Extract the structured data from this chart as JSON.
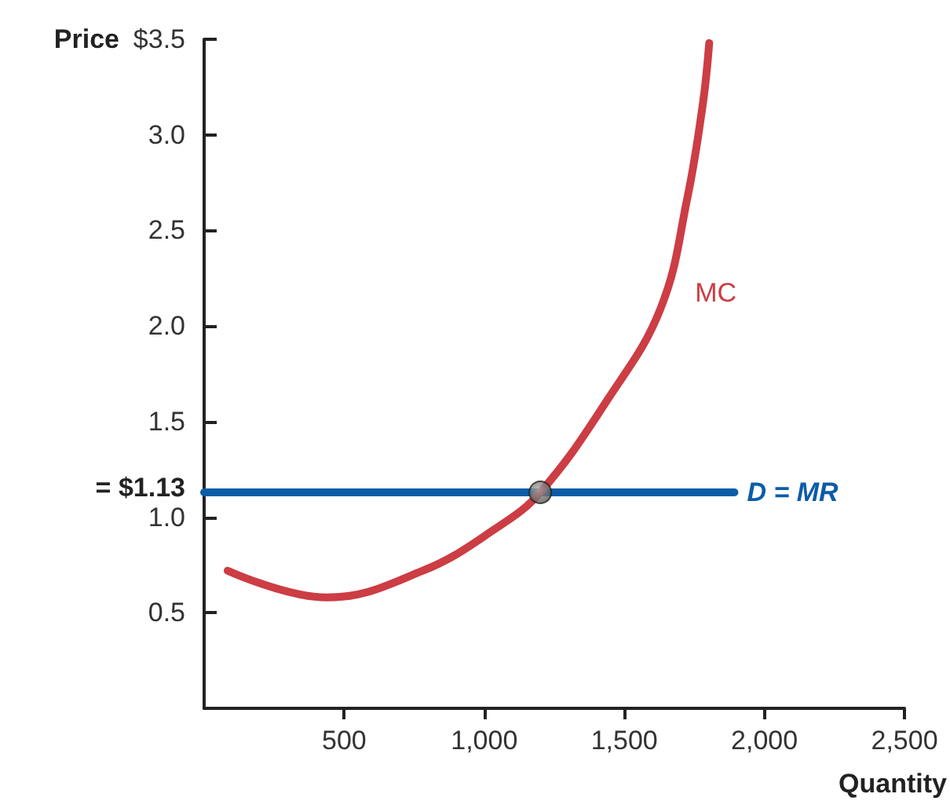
{
  "chart_data": {
    "type": "line",
    "ylabel": "Price",
    "xlabel": "Quantity",
    "xlim": [
      0,
      2500
    ],
    "xticks": [
      500,
      {
        "value": 1000,
        "label": "1,000"
      },
      {
        "value": 1500,
        "label": "1,500"
      },
      {
        "value": 2000,
        "label": "2,000"
      },
      {
        "value": 2500,
        "label": "2,500"
      }
    ],
    "ylim": [
      0,
      3.5
    ],
    "yticks": [
      0.5,
      {
        "value": 1,
        "label": "1.0"
      },
      {
        "value": 1.13,
        "label": "= $1.13"
      },
      1.5,
      {
        "value": 2,
        "label": "2.0"
      },
      2.5,
      {
        "value": 3,
        "label": "3.0"
      },
      {
        "value": 3.5,
        "label": "$3.5"
      }
    ],
    "grid": false,
    "legend": false,
    "marker": "none",
    "line_style": "solid",
    "series": [
      {
        "name": "MC",
        "color": "#cc3d44",
        "x": [
          84,
          438,
          781,
          1040,
          1200,
          1438,
          1629,
          1725,
          1781,
          1803
        ],
        "values": [
          0.72,
          0.58,
          0.72,
          0.94,
          1.13,
          1.61,
          2.09,
          2.67,
          3.17,
          3.48
        ]
      },
      {
        "name": "D = MR",
        "color": "#0b5ca8",
        "x": [
          0,
          1893
        ],
        "values": [
          1.13,
          1.13
        ]
      },
      {
        "type": "scatter",
        "marker": "circle",
        "color": "#555555",
        "x": [
          1200
        ],
        "values": [
          1.13
        ]
      }
    ]
  }
}
